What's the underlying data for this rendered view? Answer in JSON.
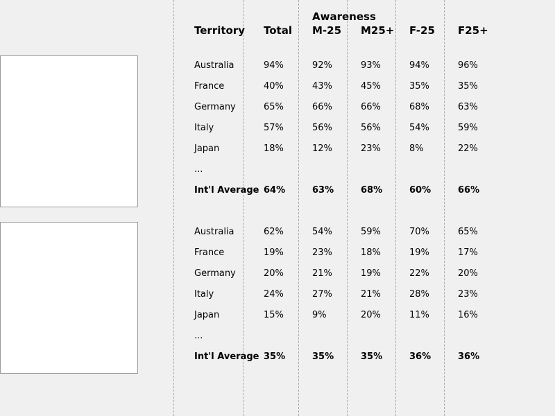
{
  "header": {
    "group_label": "Awareness",
    "columns": [
      "Territory",
      "Total",
      "M-25",
      "M25+",
      "F-25",
      "F25+"
    ]
  },
  "tables": [
    {
      "rows": [
        [
          "Australia",
          "94%",
          "92%",
          "93%",
          "94%",
          "96%"
        ],
        [
          "France",
          "40%",
          "43%",
          "45%",
          "35%",
          "35%"
        ],
        [
          "Germany",
          "65%",
          "66%",
          "66%",
          "68%",
          "63%"
        ],
        [
          "Italy",
          "57%",
          "56%",
          "56%",
          "54%",
          "59%"
        ],
        [
          "Japan",
          "18%",
          "12%",
          "23%",
          "8%",
          "22%"
        ]
      ],
      "ellipsis": "...",
      "average": [
        "Int'l Average",
        "64%",
        "63%",
        "68%",
        "60%",
        "66%"
      ]
    },
    {
      "rows": [
        [
          "Australia",
          "62%",
          "54%",
          "59%",
          "70%",
          "65%"
        ],
        [
          "France",
          "19%",
          "23%",
          "18%",
          "19%",
          "17%"
        ],
        [
          "Germany",
          "20%",
          "21%",
          "19%",
          "22%",
          "20%"
        ],
        [
          "Italy",
          "24%",
          "27%",
          "21%",
          "28%",
          "23%"
        ],
        [
          "Japan",
          "15%",
          "9%",
          "20%",
          "11%",
          "16%"
        ]
      ],
      "ellipsis": "...",
      "average": [
        "Int'l Average",
        "35%",
        "35%",
        "35%",
        "36%",
        "36%"
      ]
    }
  ]
}
